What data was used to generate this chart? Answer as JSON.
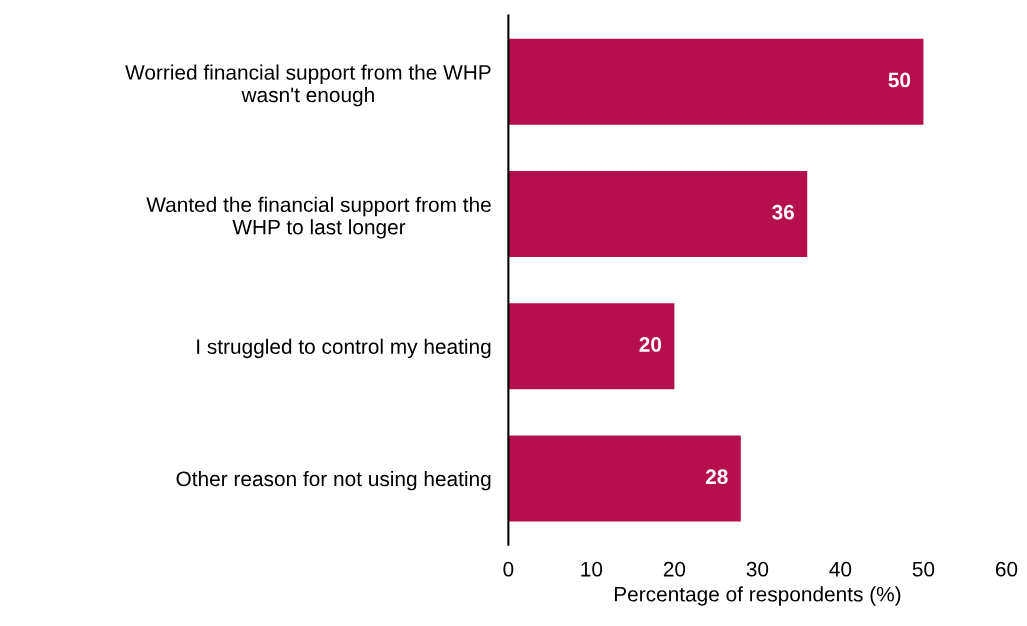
{
  "chart_data": {
    "type": "bar",
    "orientation": "horizontal",
    "xlabel": "Percentage of respondents (%)",
    "categories": [
      "Worried financial support from the WHP\nwasn't enough",
      "Wanted the financial support from the\nWHP to last longer",
      "I struggled to control my heating",
      "Other reason for not using heating"
    ],
    "values": [
      50,
      36,
      20,
      28
    ],
    "color": "#b5104d",
    "xlim": [
      0,
      60
    ],
    "xticks": [
      0,
      10,
      20,
      30,
      40,
      50,
      60
    ],
    "data_labels": true,
    "grid": false,
    "legend": false
  }
}
